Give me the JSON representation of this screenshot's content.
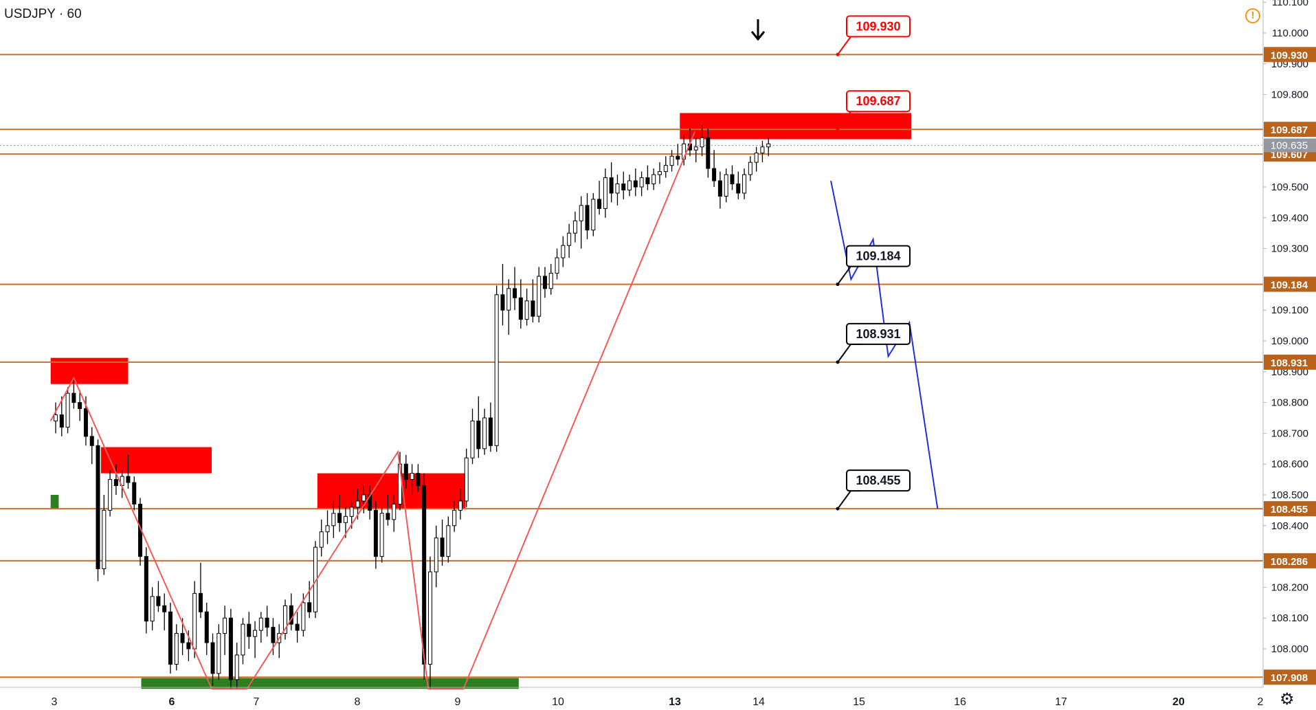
{
  "symbol": {
    "ticker": "USDJPY",
    "interval": "60",
    "display": "USDJPY · 60"
  },
  "colors": {
    "level_line": "#c8702a",
    "level_badge": "#b8621b",
    "zone_red": "#ff0000",
    "zone_green": "#2e7d1e",
    "zigzag": "#f05a5a",
    "projection": "#1f2fe0",
    "candle": "#000000",
    "current_badge": "#9598a1"
  },
  "chart_data": {
    "type": "candlestick",
    "title": "USDJPY · 60",
    "x_ticks": [
      "3",
      "6",
      "7",
      "8",
      "9",
      "10",
      "13",
      "14",
      "15",
      "16",
      "17",
      "20",
      "2"
    ],
    "y_range": [
      107.87,
      110.12
    ],
    "y_ticks": [
      110.1,
      110.0,
      109.9,
      109.8,
      109.5,
      109.4,
      109.3,
      109.1,
      109.0,
      108.9,
      108.8,
      108.7,
      108.6,
      108.5,
      108.4,
      108.2,
      108.1,
      108.0
    ],
    "y_tick_labels": [
      "110.100",
      "110.000",
      "109.900",
      "109.800",
      "109.500",
      "109.400",
      "109.300",
      "109.100",
      "109.000",
      "108.900",
      "108.800",
      "108.700",
      "108.600",
      "108.500",
      "108.400",
      "108.200",
      "108.100",
      "108.000"
    ],
    "current_price": "109.635",
    "levels": [
      {
        "value": 109.93,
        "badge": "109.930",
        "callout": "109.930",
        "callout_style": "red"
      },
      {
        "value": 109.687,
        "badge": "109.687",
        "callout": "109.687",
        "callout_style": "red"
      },
      {
        "value": 109.607,
        "badge": "109.607",
        "callout": "",
        "callout_style": ""
      },
      {
        "value": 109.184,
        "badge": "109.184",
        "callout": "109.184",
        "callout_style": "black"
      },
      {
        "value": 108.931,
        "badge": "108.931",
        "callout": "108.931",
        "callout_style": "black"
      },
      {
        "value": 108.455,
        "badge": "108.455",
        "callout": "108.455",
        "callout_style": "black"
      },
      {
        "value": 108.286,
        "badge": "108.286",
        "callout": "",
        "callout_style": ""
      },
      {
        "value": 107.908,
        "badge": "107.908",
        "callout": "",
        "callout_style": ""
      }
    ],
    "zones": [
      {
        "color": "red",
        "t1": -0.05,
        "t2": 0.72,
        "p_top": 108.945,
        "p_bot": 108.86
      },
      {
        "color": "red",
        "t1": 0.45,
        "t2": 1.55,
        "p_top": 108.655,
        "p_bot": 108.57
      },
      {
        "color": "red",
        "t1": 2.6,
        "t2": 4.07,
        "p_top": 108.57,
        "p_bot": 108.455
      },
      {
        "color": "red",
        "t1": 6.2,
        "t2": 8.5,
        "p_top": 109.74,
        "p_bot": 109.655
      },
      {
        "color": "green",
        "t1": -0.05,
        "t2": 0.03,
        "p_top": 108.5,
        "p_bot": 108.455
      },
      {
        "color": "green",
        "t1": 0.85,
        "t2": 4.6,
        "p_top": 107.905,
        "p_bot": 107.87
      }
    ],
    "zigzag": [
      {
        "t": -0.05,
        "p": 108.74
      },
      {
        "t": 0.18,
        "p": 108.88
      },
      {
        "t": 1.55,
        "p": 107.87
      },
      {
        "t": 1.9,
        "p": 107.87
      },
      {
        "t": 3.4,
        "p": 108.64
      },
      {
        "t": 3.7,
        "p": 107.87
      },
      {
        "t": 4.05,
        "p": 107.87
      },
      {
        "t": 6.35,
        "p": 109.68
      }
    ],
    "projection": [
      {
        "t": 7.7,
        "p": 109.52
      },
      {
        "t": 7.9,
        "p": 109.2
      },
      {
        "t": 8.12,
        "p": 109.33
      },
      {
        "t": 8.27,
        "p": 108.95
      },
      {
        "t": 8.48,
        "p": 109.06
      },
      {
        "t": 8.76,
        "p": 108.455
      }
    ],
    "candles": [
      {
        "t": 0.0,
        "o": 108.74,
        "h": 108.8,
        "l": 108.7,
        "c": 108.76
      },
      {
        "t": 0.06,
        "o": 108.76,
        "h": 108.82,
        "l": 108.69,
        "c": 108.72
      },
      {
        "t": 0.12,
        "o": 108.72,
        "h": 108.85,
        "l": 108.7,
        "c": 108.83
      },
      {
        "t": 0.18,
        "o": 108.83,
        "h": 108.88,
        "l": 108.78,
        "c": 108.8
      },
      {
        "t": 0.24,
        "o": 108.8,
        "h": 108.84,
        "l": 108.74,
        "c": 108.78
      },
      {
        "t": 0.3,
        "o": 108.78,
        "h": 108.82,
        "l": 108.66,
        "c": 108.69
      },
      {
        "t": 0.36,
        "o": 108.69,
        "h": 108.72,
        "l": 108.6,
        "c": 108.66
      },
      {
        "t": 0.42,
        "o": 108.66,
        "h": 108.68,
        "l": 108.22,
        "c": 108.26
      },
      {
        "t": 0.48,
        "o": 108.26,
        "h": 108.5,
        "l": 108.24,
        "c": 108.45
      },
      {
        "t": 0.54,
        "o": 108.45,
        "h": 108.58,
        "l": 108.43,
        "c": 108.55
      },
      {
        "t": 0.6,
        "o": 108.55,
        "h": 108.6,
        "l": 108.5,
        "c": 108.53
      },
      {
        "t": 0.66,
        "o": 108.53,
        "h": 108.58,
        "l": 108.49,
        "c": 108.56
      },
      {
        "t": 0.72,
        "o": 108.56,
        "h": 108.63,
        "l": 108.52,
        "c": 108.54
      },
      {
        "t": 0.78,
        "o": 108.54,
        "h": 108.56,
        "l": 108.45,
        "c": 108.47
      },
      {
        "t": 0.84,
        "o": 108.47,
        "h": 108.49,
        "l": 108.27,
        "c": 108.3
      },
      {
        "t": 0.9,
        "o": 108.3,
        "h": 108.33,
        "l": 108.05,
        "c": 108.09
      },
      {
        "t": 0.96,
        "o": 108.09,
        "h": 108.2,
        "l": 108.06,
        "c": 108.17
      },
      {
        "t": 1.02,
        "o": 108.17,
        "h": 108.22,
        "l": 108.12,
        "c": 108.14
      },
      {
        "t": 1.08,
        "o": 108.14,
        "h": 108.18,
        "l": 108.06,
        "c": 108.12
      },
      {
        "t": 1.14,
        "o": 108.12,
        "h": 108.15,
        "l": 107.92,
        "c": 107.95
      },
      {
        "t": 1.2,
        "o": 107.95,
        "h": 108.08,
        "l": 107.93,
        "c": 108.05
      },
      {
        "t": 1.26,
        "o": 108.05,
        "h": 108.1,
        "l": 107.98,
        "c": 108.02
      },
      {
        "t": 1.32,
        "o": 108.02,
        "h": 108.06,
        "l": 107.96,
        "c": 108.0
      },
      {
        "t": 1.38,
        "o": 108.0,
        "h": 108.22,
        "l": 107.97,
        "c": 108.18
      },
      {
        "t": 1.44,
        "o": 108.18,
        "h": 108.28,
        "l": 108.1,
        "c": 108.12
      },
      {
        "t": 1.5,
        "o": 108.12,
        "h": 108.15,
        "l": 107.98,
        "c": 108.02
      },
      {
        "t": 1.56,
        "o": 108.02,
        "h": 108.05,
        "l": 107.88,
        "c": 107.92
      },
      {
        "t": 1.62,
        "o": 107.92,
        "h": 108.08,
        "l": 107.9,
        "c": 108.05
      },
      {
        "t": 1.68,
        "o": 108.05,
        "h": 108.14,
        "l": 107.98,
        "c": 108.1
      },
      {
        "t": 1.74,
        "o": 108.1,
        "h": 108.13,
        "l": 107.87,
        "c": 107.9
      },
      {
        "t": 1.8,
        "o": 107.9,
        "h": 108.02,
        "l": 107.87,
        "c": 107.98
      },
      {
        "t": 1.86,
        "o": 107.98,
        "h": 108.1,
        "l": 107.95,
        "c": 108.08
      },
      {
        "t": 1.92,
        "o": 108.08,
        "h": 108.12,
        "l": 108.0,
        "c": 108.04
      },
      {
        "t": 1.98,
        "o": 108.04,
        "h": 108.09,
        "l": 107.97,
        "c": 108.06
      },
      {
        "t": 2.04,
        "o": 108.06,
        "h": 108.12,
        "l": 108.02,
        "c": 108.1
      },
      {
        "t": 2.1,
        "o": 108.1,
        "h": 108.14,
        "l": 108.04,
        "c": 108.07
      },
      {
        "t": 2.16,
        "o": 108.07,
        "h": 108.1,
        "l": 107.98,
        "c": 108.02
      },
      {
        "t": 2.22,
        "o": 108.02,
        "h": 108.08,
        "l": 107.97,
        "c": 108.05
      },
      {
        "t": 2.28,
        "o": 108.05,
        "h": 108.16,
        "l": 108.03,
        "c": 108.14
      },
      {
        "t": 2.34,
        "o": 108.14,
        "h": 108.18,
        "l": 108.06,
        "c": 108.08
      },
      {
        "t": 2.4,
        "o": 108.08,
        "h": 108.12,
        "l": 108.02,
        "c": 108.06
      },
      {
        "t": 2.46,
        "o": 108.06,
        "h": 108.18,
        "l": 108.04,
        "c": 108.15
      },
      {
        "t": 2.52,
        "o": 108.15,
        "h": 108.22,
        "l": 108.1,
        "c": 108.12
      },
      {
        "t": 2.58,
        "o": 108.12,
        "h": 108.35,
        "l": 108.1,
        "c": 108.33
      },
      {
        "t": 2.64,
        "o": 108.33,
        "h": 108.42,
        "l": 108.3,
        "c": 108.38
      },
      {
        "t": 2.7,
        "o": 108.38,
        "h": 108.45,
        "l": 108.34,
        "c": 108.4
      },
      {
        "t": 2.76,
        "o": 108.4,
        "h": 108.48,
        "l": 108.36,
        "c": 108.44
      },
      {
        "t": 2.82,
        "o": 108.44,
        "h": 108.5,
        "l": 108.38,
        "c": 108.41
      },
      {
        "t": 2.88,
        "o": 108.41,
        "h": 108.46,
        "l": 108.36,
        "c": 108.43
      },
      {
        "t": 2.94,
        "o": 108.43,
        "h": 108.48,
        "l": 108.39,
        "c": 108.46
      },
      {
        "t": 3.0,
        "o": 108.46,
        "h": 108.52,
        "l": 108.42,
        "c": 108.48
      },
      {
        "t": 3.06,
        "o": 108.48,
        "h": 108.53,
        "l": 108.44,
        "c": 108.5
      },
      {
        "t": 3.12,
        "o": 108.5,
        "h": 108.53,
        "l": 108.42,
        "c": 108.45
      },
      {
        "t": 3.18,
        "o": 108.45,
        "h": 108.48,
        "l": 108.26,
        "c": 108.3
      },
      {
        "t": 3.24,
        "o": 108.3,
        "h": 108.46,
        "l": 108.28,
        "c": 108.44
      },
      {
        "t": 3.3,
        "o": 108.44,
        "h": 108.5,
        "l": 108.4,
        "c": 108.42
      },
      {
        "t": 3.36,
        "o": 108.42,
        "h": 108.5,
        "l": 108.38,
        "c": 108.47
      },
      {
        "t": 3.42,
        "o": 108.47,
        "h": 108.64,
        "l": 108.45,
        "c": 108.6
      },
      {
        "t": 3.48,
        "o": 108.6,
        "h": 108.63,
        "l": 108.52,
        "c": 108.55
      },
      {
        "t": 3.54,
        "o": 108.55,
        "h": 108.6,
        "l": 108.5,
        "c": 108.57
      },
      {
        "t": 3.6,
        "o": 108.57,
        "h": 108.6,
        "l": 108.51,
        "c": 108.53
      },
      {
        "t": 3.66,
        "o": 108.53,
        "h": 108.57,
        "l": 107.9,
        "c": 107.95
      },
      {
        "t": 3.72,
        "o": 107.95,
        "h": 108.3,
        "l": 107.87,
        "c": 108.25
      },
      {
        "t": 3.78,
        "o": 108.25,
        "h": 108.4,
        "l": 108.2,
        "c": 108.36
      },
      {
        "t": 3.84,
        "o": 108.36,
        "h": 108.42,
        "l": 108.27,
        "c": 108.3
      },
      {
        "t": 3.9,
        "o": 108.3,
        "h": 108.43,
        "l": 108.28,
        "c": 108.4
      },
      {
        "t": 3.96,
        "o": 108.4,
        "h": 108.48,
        "l": 108.38,
        "c": 108.45
      },
      {
        "t": 4.02,
        "o": 108.45,
        "h": 108.52,
        "l": 108.42,
        "c": 108.48
      },
      {
        "t": 4.08,
        "o": 108.48,
        "h": 108.65,
        "l": 108.46,
        "c": 108.62
      },
      {
        "t": 4.14,
        "o": 108.62,
        "h": 108.78,
        "l": 108.6,
        "c": 108.74
      },
      {
        "t": 4.2,
        "o": 108.74,
        "h": 108.82,
        "l": 108.62,
        "c": 108.65
      },
      {
        "t": 4.26,
        "o": 108.65,
        "h": 108.78,
        "l": 108.63,
        "c": 108.75
      },
      {
        "t": 4.32,
        "o": 108.75,
        "h": 108.8,
        "l": 108.64,
        "c": 108.66
      },
      {
        "t": 4.38,
        "o": 108.66,
        "h": 109.18,
        "l": 108.64,
        "c": 109.15
      },
      {
        "t": 4.44,
        "o": 109.15,
        "h": 109.25,
        "l": 109.05,
        "c": 109.1
      },
      {
        "t": 4.5,
        "o": 109.1,
        "h": 109.2,
        "l": 109.02,
        "c": 109.17
      },
      {
        "t": 4.56,
        "o": 109.17,
        "h": 109.24,
        "l": 109.1,
        "c": 109.14
      },
      {
        "t": 4.62,
        "o": 109.14,
        "h": 109.2,
        "l": 109.04,
        "c": 109.07
      },
      {
        "t": 4.68,
        "o": 109.07,
        "h": 109.17,
        "l": 109.05,
        "c": 109.13
      },
      {
        "t": 4.74,
        "o": 109.13,
        "h": 109.2,
        "l": 109.06,
        "c": 109.08
      },
      {
        "t": 4.8,
        "o": 109.08,
        "h": 109.24,
        "l": 109.06,
        "c": 109.21
      },
      {
        "t": 4.86,
        "o": 109.21,
        "h": 109.24,
        "l": 109.14,
        "c": 109.17
      },
      {
        "t": 4.92,
        "o": 109.17,
        "h": 109.25,
        "l": 109.15,
        "c": 109.22
      },
      {
        "t": 4.98,
        "o": 109.22,
        "h": 109.3,
        "l": 109.2,
        "c": 109.27
      },
      {
        "t": 5.04,
        "o": 109.27,
        "h": 109.34,
        "l": 109.24,
        "c": 109.31
      },
      {
        "t": 5.1,
        "o": 109.31,
        "h": 109.38,
        "l": 109.27,
        "c": 109.35
      },
      {
        "t": 5.16,
        "o": 109.35,
        "h": 109.42,
        "l": 109.32,
        "c": 109.39
      },
      {
        "t": 5.22,
        "o": 109.39,
        "h": 109.47,
        "l": 109.3,
        "c": 109.44
      },
      {
        "t": 5.28,
        "o": 109.44,
        "h": 109.48,
        "l": 109.33,
        "c": 109.36
      },
      {
        "t": 5.34,
        "o": 109.36,
        "h": 109.48,
        "l": 109.34,
        "c": 109.46
      },
      {
        "t": 5.4,
        "o": 109.46,
        "h": 109.52,
        "l": 109.41,
        "c": 109.43
      },
      {
        "t": 5.46,
        "o": 109.43,
        "h": 109.56,
        "l": 109.4,
        "c": 109.53
      },
      {
        "t": 5.52,
        "o": 109.53,
        "h": 109.58,
        "l": 109.45,
        "c": 109.48
      },
      {
        "t": 5.58,
        "o": 109.48,
        "h": 109.54,
        "l": 109.44,
        "c": 109.51
      },
      {
        "t": 5.64,
        "o": 109.51,
        "h": 109.55,
        "l": 109.46,
        "c": 109.49
      },
      {
        "t": 5.7,
        "o": 109.49,
        "h": 109.54,
        "l": 109.47,
        "c": 109.52
      },
      {
        "t": 5.76,
        "o": 109.52,
        "h": 109.56,
        "l": 109.47,
        "c": 109.5
      },
      {
        "t": 5.82,
        "o": 109.5,
        "h": 109.55,
        "l": 109.47,
        "c": 109.53
      },
      {
        "t": 5.88,
        "o": 109.53,
        "h": 109.57,
        "l": 109.49,
        "c": 109.51
      },
      {
        "t": 5.94,
        "o": 109.51,
        "h": 109.56,
        "l": 109.49,
        "c": 109.54
      },
      {
        "t": 6.0,
        "o": 109.54,
        "h": 109.58,
        "l": 109.51,
        "c": 109.55
      },
      {
        "t": 6.06,
        "o": 109.55,
        "h": 109.6,
        "l": 109.53,
        "c": 109.57
      },
      {
        "t": 6.12,
        "o": 109.57,
        "h": 109.62,
        "l": 109.55,
        "c": 109.6
      },
      {
        "t": 6.18,
        "o": 109.6,
        "h": 109.64,
        "l": 109.57,
        "c": 109.59
      },
      {
        "t": 6.24,
        "o": 109.59,
        "h": 109.67,
        "l": 109.57,
        "c": 109.64
      },
      {
        "t": 6.3,
        "o": 109.64,
        "h": 109.69,
        "l": 109.6,
        "c": 109.62
      },
      {
        "t": 6.36,
        "o": 109.62,
        "h": 109.66,
        "l": 109.58,
        "c": 109.63
      },
      {
        "t": 6.42,
        "o": 109.63,
        "h": 109.7,
        "l": 109.6,
        "c": 109.66
      },
      {
        "t": 6.48,
        "o": 109.66,
        "h": 109.69,
        "l": 109.53,
        "c": 109.56
      },
      {
        "t": 6.54,
        "o": 109.56,
        "h": 109.62,
        "l": 109.5,
        "c": 109.52
      },
      {
        "t": 6.6,
        "o": 109.52,
        "h": 109.55,
        "l": 109.43,
        "c": 109.47
      },
      {
        "t": 6.66,
        "o": 109.47,
        "h": 109.56,
        "l": 109.45,
        "c": 109.54
      },
      {
        "t": 6.72,
        "o": 109.54,
        "h": 109.57,
        "l": 109.49,
        "c": 109.51
      },
      {
        "t": 6.78,
        "o": 109.51,
        "h": 109.55,
        "l": 109.46,
        "c": 109.48
      },
      {
        "t": 6.84,
        "o": 109.48,
        "h": 109.56,
        "l": 109.46,
        "c": 109.54
      },
      {
        "t": 6.9,
        "o": 109.54,
        "h": 109.6,
        "l": 109.52,
        "c": 109.58
      },
      {
        "t": 6.96,
        "o": 109.58,
        "h": 109.63,
        "l": 109.55,
        "c": 109.61
      },
      {
        "t": 7.02,
        "o": 109.61,
        "h": 109.65,
        "l": 109.58,
        "c": 109.63
      },
      {
        "t": 7.08,
        "o": 109.63,
        "h": 109.66,
        "l": 109.6,
        "c": 109.64
      }
    ]
  }
}
